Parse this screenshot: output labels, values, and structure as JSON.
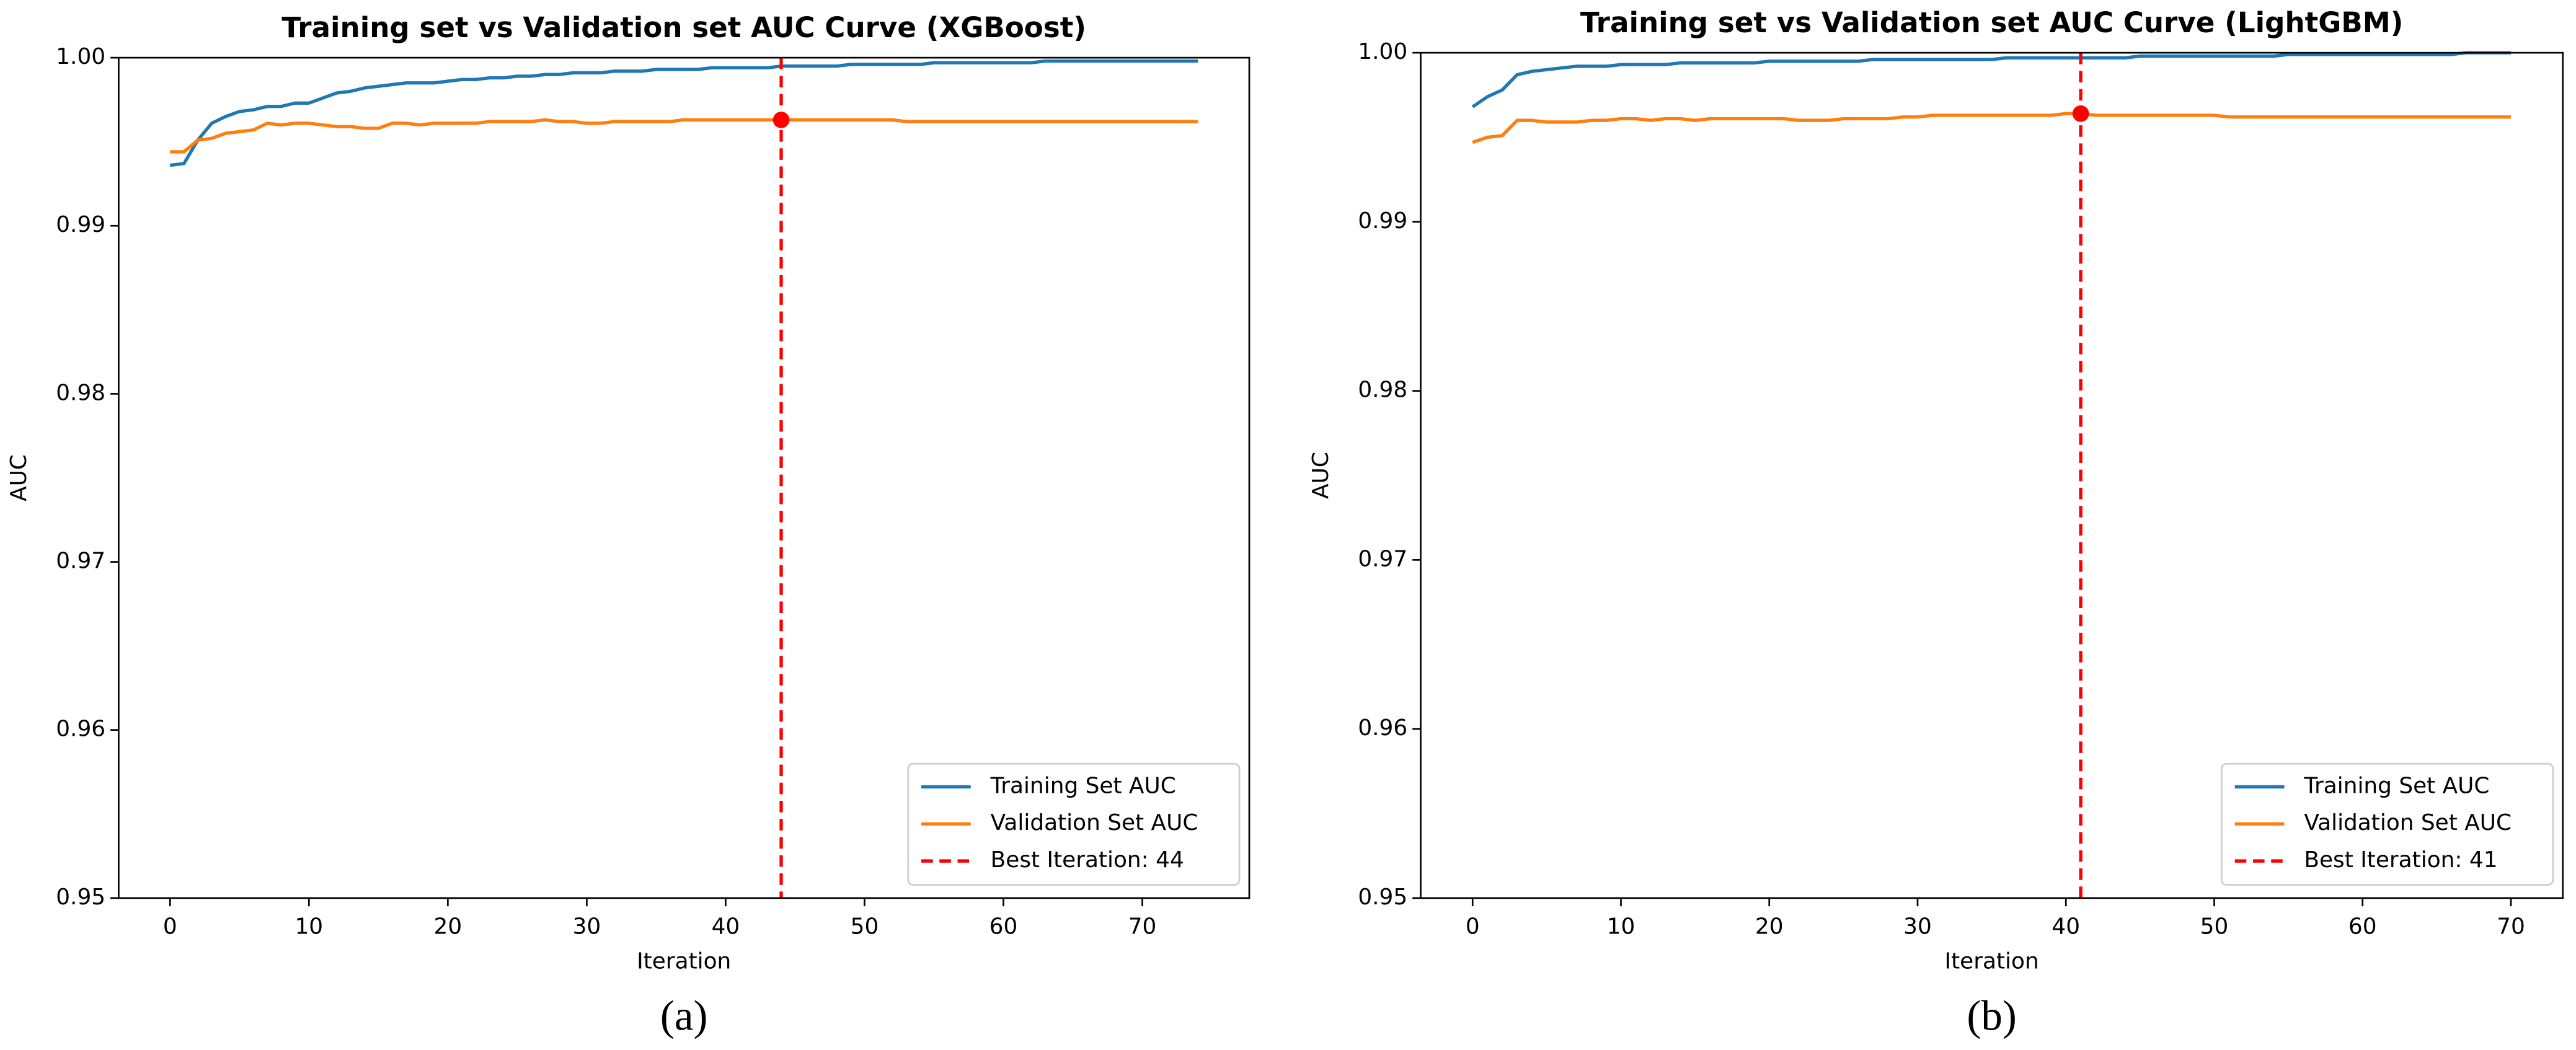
{
  "chart_data": [
    {
      "type": "line",
      "title": "Training set vs Validation set AUC Curve (XGBoost)",
      "caption": "(a)",
      "xlabel": "Iteration",
      "ylabel": "AUC",
      "x": [
        0,
        1,
        2,
        3,
        4,
        5,
        6,
        7,
        8,
        9,
        10,
        11,
        12,
        13,
        14,
        15,
        16,
        17,
        18,
        19,
        20,
        21,
        22,
        23,
        24,
        25,
        26,
        27,
        28,
        29,
        30,
        31,
        32,
        33,
        34,
        35,
        36,
        37,
        38,
        39,
        40,
        41,
        42,
        43,
        44,
        45,
        46,
        47,
        48,
        49,
        50,
        51,
        52,
        53,
        54,
        55,
        56,
        57,
        58,
        59,
        60,
        61,
        62,
        63,
        64,
        65,
        66,
        67,
        68,
        69,
        70,
        71,
        72,
        73,
        74
      ],
      "series": [
        {
          "name": "Training Set AUC",
          "color": "#1f77b4",
          "values": [
            0.9936,
            0.9937,
            0.9951,
            0.9961,
            0.9965,
            0.9968,
            0.9969,
            0.9971,
            0.9971,
            0.9973,
            0.9973,
            0.9976,
            0.9979,
            0.998,
            0.9982,
            0.9983,
            0.9984,
            0.9985,
            0.9985,
            0.9985,
            0.9986,
            0.9987,
            0.9987,
            0.9988,
            0.9988,
            0.9989,
            0.9989,
            0.999,
            0.999,
            0.9991,
            0.9991,
            0.9991,
            0.9992,
            0.9992,
            0.9992,
            0.9993,
            0.9993,
            0.9993,
            0.9993,
            0.9994,
            0.9994,
            0.9994,
            0.9994,
            0.9994,
            0.9995,
            0.9995,
            0.9995,
            0.9995,
            0.9995,
            0.9996,
            0.9996,
            0.9996,
            0.9996,
            0.9996,
            0.9996,
            0.9997,
            0.9997,
            0.9997,
            0.9997,
            0.9997,
            0.9997,
            0.9997,
            0.9997,
            0.9998,
            0.9998,
            0.9998,
            0.9998,
            0.9998,
            0.9998,
            0.9998,
            0.9998,
            0.9998,
            0.9998,
            0.9998,
            0.9998
          ]
        },
        {
          "name": "Validation Set AUC",
          "color": "#ff7f0e",
          "values": [
            0.9944,
            0.9944,
            0.9951,
            0.9952,
            0.9955,
            0.9956,
            0.9957,
            0.9961,
            0.996,
            0.9961,
            0.9961,
            0.996,
            0.9959,
            0.9959,
            0.9958,
            0.9958,
            0.9961,
            0.9961,
            0.996,
            0.9961,
            0.9961,
            0.9961,
            0.9961,
            0.9962,
            0.9962,
            0.9962,
            0.9962,
            0.9963,
            0.9962,
            0.9962,
            0.9961,
            0.9961,
            0.9962,
            0.9962,
            0.9962,
            0.9962,
            0.9962,
            0.9963,
            0.9963,
            0.9963,
            0.9963,
            0.9963,
            0.9963,
            0.9963,
            0.9963,
            0.9963,
            0.9963,
            0.9963,
            0.9963,
            0.9963,
            0.9963,
            0.9963,
            0.9963,
            0.9962,
            0.9962,
            0.9962,
            0.9962,
            0.9962,
            0.9962,
            0.9962,
            0.9962,
            0.9962,
            0.9962,
            0.9962,
            0.9962,
            0.9962,
            0.9962,
            0.9962,
            0.9962,
            0.9962,
            0.9962,
            0.9962,
            0.9962,
            0.9962,
            0.9962
          ]
        }
      ],
      "best": {
        "x": 44,
        "name": "Best Iteration: 44",
        "color": "#ff0000"
      },
      "xlim": [
        -3.7,
        77.7
      ],
      "ylim": [
        0.95,
        1.0
      ],
      "xticks": [
        0,
        10,
        20,
        30,
        40,
        50,
        60,
        70
      ],
      "yticks": [
        0.95,
        0.96,
        0.97,
        0.98,
        0.99,
        {
          "value": 1,
          "label": "1.00"
        }
      ],
      "legend": "lower right"
    },
    {
      "type": "line",
      "title": "Training set vs Validation set AUC Curve (LightGBM)",
      "caption": "(b)",
      "xlabel": "Iteration",
      "ylabel": "AUC",
      "x": [
        0,
        1,
        2,
        3,
        4,
        5,
        6,
        7,
        8,
        9,
        10,
        11,
        12,
        13,
        14,
        15,
        16,
        17,
        18,
        19,
        20,
        21,
        22,
        23,
        24,
        25,
        26,
        27,
        28,
        29,
        30,
        31,
        32,
        33,
        34,
        35,
        36,
        37,
        38,
        39,
        40,
        41,
        42,
        43,
        44,
        45,
        46,
        47,
        48,
        49,
        50,
        51,
        52,
        53,
        54,
        55,
        56,
        57,
        58,
        59,
        60,
        61,
        62,
        63,
        64,
        65,
        66,
        67,
        68,
        69,
        70
      ],
      "series": [
        {
          "name": "Training Set AUC",
          "color": "#1f77b4",
          "values": [
            0.9968,
            0.9974,
            0.9978,
            0.9987,
            0.9989,
            0.999,
            0.9991,
            0.9992,
            0.9992,
            0.9992,
            0.9993,
            0.9993,
            0.9993,
            0.9993,
            0.9994,
            0.9994,
            0.9994,
            0.9994,
            0.9994,
            0.9994,
            0.9995,
            0.9995,
            0.9995,
            0.9995,
            0.9995,
            0.9995,
            0.9995,
            0.9996,
            0.9996,
            0.9996,
            0.9996,
            0.9996,
            0.9996,
            0.9996,
            0.9996,
            0.9996,
            0.9997,
            0.9997,
            0.9997,
            0.9997,
            0.9997,
            0.9997,
            0.9997,
            0.9997,
            0.9997,
            0.9998,
            0.9998,
            0.9998,
            0.9998,
            0.9998,
            0.9998,
            0.9998,
            0.9998,
            0.9998,
            0.9998,
            0.9999,
            0.9999,
            0.9999,
            0.9999,
            0.9999,
            0.9999,
            0.9999,
            0.9999,
            0.9999,
            0.9999,
            0.9999,
            0.9999,
            1.0,
            1.0,
            1.0,
            1.0
          ]
        },
        {
          "name": "Validation Set AUC",
          "color": "#ff7f0e",
          "values": [
            0.9947,
            0.995,
            0.9951,
            0.996,
            0.996,
            0.9959,
            0.9959,
            0.9959,
            0.996,
            0.996,
            0.9961,
            0.9961,
            0.996,
            0.9961,
            0.9961,
            0.996,
            0.9961,
            0.9961,
            0.9961,
            0.9961,
            0.9961,
            0.9961,
            0.996,
            0.996,
            0.996,
            0.9961,
            0.9961,
            0.9961,
            0.9961,
            0.9962,
            0.9962,
            0.9963,
            0.9963,
            0.9963,
            0.9963,
            0.9963,
            0.9963,
            0.9963,
            0.9963,
            0.9963,
            0.9964,
            0.9964,
            0.9963,
            0.9963,
            0.9963,
            0.9963,
            0.9963,
            0.9963,
            0.9963,
            0.9963,
            0.9963,
            0.9962,
            0.9962,
            0.9962,
            0.9962,
            0.9962,
            0.9962,
            0.9962,
            0.9962,
            0.9962,
            0.9962,
            0.9962,
            0.9962,
            0.9962,
            0.9962,
            0.9962,
            0.9962,
            0.9962,
            0.9962,
            0.9962,
            0.9962
          ]
        }
      ],
      "best": {
        "x": 41,
        "name": "Best Iteration: 41",
        "color": "#ff0000"
      },
      "xlim": [
        -3.5,
        73.5
      ],
      "ylim": [
        0.95,
        1.0
      ],
      "xticks": [
        0,
        10,
        20,
        30,
        40,
        50,
        60,
        70
      ],
      "yticks": [
        0.95,
        0.96,
        0.97,
        0.98,
        0.99,
        {
          "value": 1,
          "label": "1.00"
        }
      ],
      "legend": "lower right"
    }
  ]
}
